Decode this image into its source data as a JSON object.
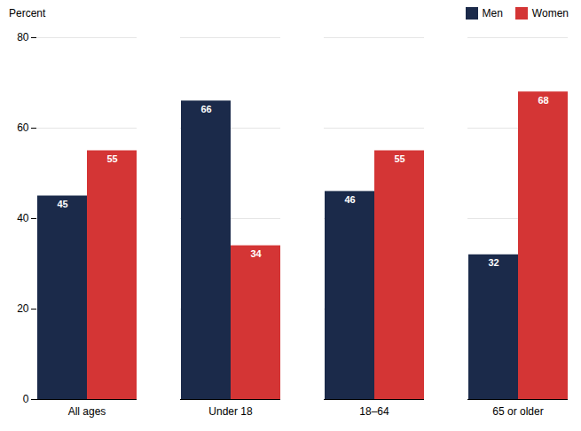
{
  "chart_data": {
    "type": "bar",
    "categories": [
      "All ages",
      "Under 18",
      "18–64",
      "65 or older"
    ],
    "series": [
      {
        "name": "Men",
        "color": "#1b2a4a",
        "values": [
          45,
          66,
          46,
          32
        ]
      },
      {
        "name": "Women",
        "color": "#d43535",
        "values": [
          55,
          34,
          55,
          68
        ]
      }
    ],
    "y_label": "Percent",
    "ylim": [
      0,
      80
    ],
    "yticks": [
      0,
      20,
      40,
      60,
      80
    ],
    "grid": true,
    "data_labels": true,
    "legend": "upper right"
  }
}
